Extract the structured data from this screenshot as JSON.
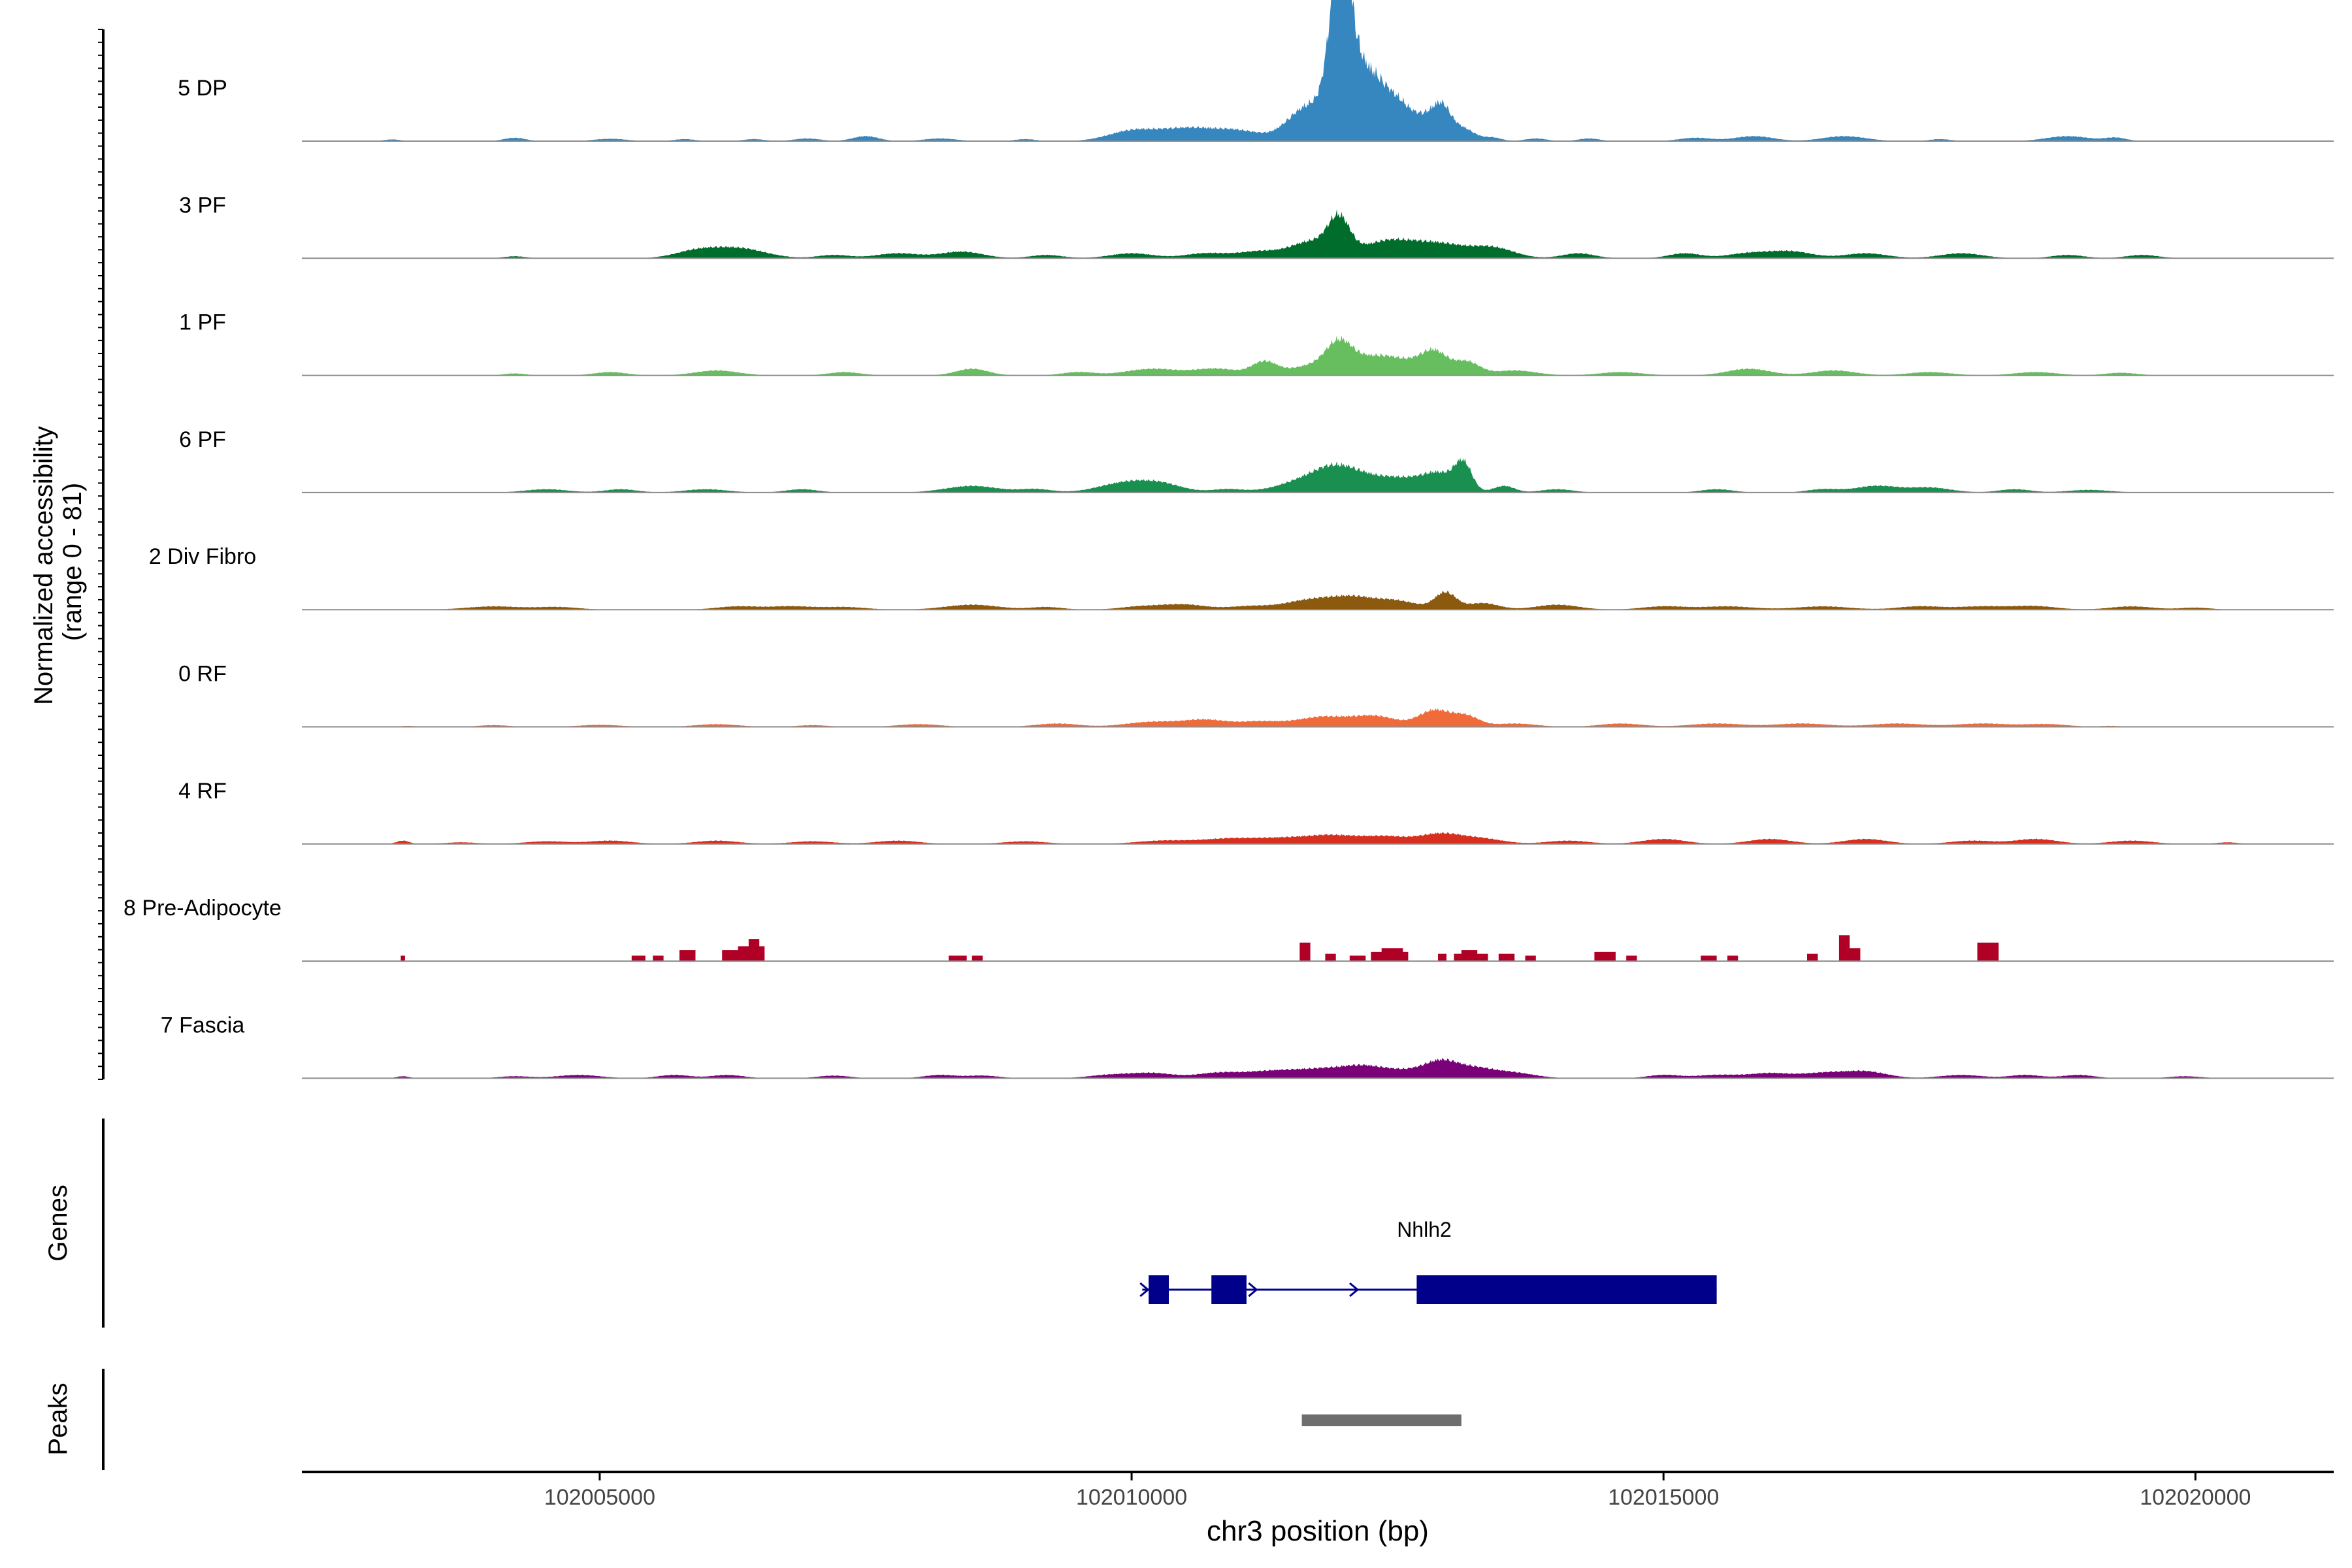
{
  "chart_data": {
    "type": "area",
    "title": "",
    "xlabel": "chr3 position (bp)",
    "ylabel_line1": "Normalized accessibility",
    "ylabel_line2": "(range 0 - 81)",
    "xlim": [
      102002200,
      102021300
    ],
    "ylim": [
      0,
      81
    ],
    "x_ticks": [
      102005000,
      102010000,
      102015000,
      102020000
    ],
    "x_tick_labels": [
      "102005000",
      "102010000",
      "102015000",
      "102020000"
    ],
    "series": [
      {
        "name": "5 DP",
        "color": "#3686C0",
        "peaks": [
          [
            102003050,
            0.5,
            80
          ],
          [
            102004200,
            1,
            100
          ],
          [
            102005100,
            0.7,
            150
          ],
          [
            102005800,
            0.6,
            100
          ],
          [
            102006450,
            0.6,
            100
          ],
          [
            102006950,
            0.8,
            120
          ],
          [
            102007500,
            1.5,
            120
          ],
          [
            102008200,
            0.8,
            150
          ],
          [
            102009000,
            0.6,
            100
          ],
          [
            102010000,
            3,
            220
          ],
          [
            102010500,
            3.5,
            250
          ],
          [
            102011000,
            3,
            250
          ],
          [
            102011550,
            4,
            150
          ],
          [
            102011800,
            10,
            200
          ],
          [
            102011930,
            30,
            80
          ],
          [
            102012020,
            20,
            80
          ],
          [
            102012100,
            12,
            150
          ],
          [
            102012300,
            14,
            150
          ],
          [
            102012550,
            8,
            120
          ],
          [
            102012780,
            6,
            100
          ],
          [
            102012920,
            8,
            80
          ],
          [
            102013100,
            4,
            120
          ],
          [
            102013400,
            1,
            80
          ],
          [
            102013800,
            0.8,
            100
          ],
          [
            102014300,
            0.8,
            100
          ],
          [
            102015300,
            1,
            150
          ],
          [
            102015850,
            1.5,
            180
          ],
          [
            102016700,
            1.5,
            200
          ],
          [
            102017600,
            0.6,
            100
          ],
          [
            102018800,
            1.5,
            200
          ],
          [
            102019250,
            1,
            100
          ]
        ]
      },
      {
        "name": "3 PF",
        "color": "#006D2C",
        "peaks": [
          [
            102004200,
            0.6,
            100
          ],
          [
            102005900,
            2,
            200
          ],
          [
            102006300,
            3,
            250
          ],
          [
            102007200,
            1,
            150
          ],
          [
            102007800,
            1.5,
            200
          ],
          [
            102008400,
            2,
            200
          ],
          [
            102009200,
            1,
            150
          ],
          [
            102010000,
            1.5,
            200
          ],
          [
            102010700,
            1.5,
            200
          ],
          [
            102011200,
            2,
            200
          ],
          [
            102011700,
            5,
            200
          ],
          [
            102011950,
            10,
            100
          ],
          [
            102012400,
            5,
            250
          ],
          [
            102012900,
            4,
            250
          ],
          [
            102013400,
            3,
            200
          ],
          [
            102014200,
            1.5,
            150
          ],
          [
            102015200,
            1.5,
            150
          ],
          [
            102015800,
            1.5,
            200
          ],
          [
            102016200,
            2,
            200
          ],
          [
            102016900,
            1.5,
            200
          ],
          [
            102017800,
            1.5,
            200
          ],
          [
            102018800,
            1,
            150
          ],
          [
            102019500,
            1,
            150
          ]
        ]
      },
      {
        "name": "1 PF",
        "color": "#66BE5F",
        "peaks": [
          [
            102004200,
            0.6,
            100
          ],
          [
            102005100,
            1,
            150
          ],
          [
            102006100,
            1.5,
            200
          ],
          [
            102007300,
            1,
            150
          ],
          [
            102008500,
            2,
            150
          ],
          [
            102009500,
            1,
            150
          ],
          [
            102010200,
            2,
            250
          ],
          [
            102010800,
            2,
            200
          ],
          [
            102011250,
            4,
            120
          ],
          [
            102011700,
            3,
            200
          ],
          [
            102011950,
            8,
            120
          ],
          [
            102012250,
            5,
            200
          ],
          [
            102012600,
            3.5,
            200
          ],
          [
            102012850,
            6,
            120
          ],
          [
            102013150,
            4,
            120
          ],
          [
            102013600,
            1.5,
            200
          ],
          [
            102014600,
            1,
            200
          ],
          [
            102015800,
            2,
            200
          ],
          [
            102016600,
            1.5,
            200
          ],
          [
            102017500,
            1,
            200
          ],
          [
            102018500,
            1,
            200
          ],
          [
            102019300,
            0.8,
            150
          ]
        ]
      },
      {
        "name": "6 PF",
        "color": "#1A9050",
        "peaks": [
          [
            102004500,
            1,
            200
          ],
          [
            102005200,
            1,
            150
          ],
          [
            102006000,
            1,
            200
          ],
          [
            102006900,
            1,
            150
          ],
          [
            102008500,
            2,
            250
          ],
          [
            102009100,
            1,
            150
          ],
          [
            102009950,
            3,
            250
          ],
          [
            102010300,
            2,
            200
          ],
          [
            102010900,
            1,
            150
          ],
          [
            102011600,
            3,
            250
          ],
          [
            102011900,
            5,
            200
          ],
          [
            102012200,
            4,
            250
          ],
          [
            102012600,
            3,
            200
          ],
          [
            102012900,
            5,
            150
          ],
          [
            102013120,
            8,
            80
          ],
          [
            102013500,
            2,
            100
          ],
          [
            102014000,
            1,
            150
          ],
          [
            102015500,
            1,
            150
          ],
          [
            102016500,
            1,
            150
          ],
          [
            102017000,
            2,
            200
          ],
          [
            102017500,
            1.5,
            200
          ],
          [
            102018300,
            1,
            150
          ],
          [
            102019000,
            0.8,
            200
          ]
        ]
      },
      {
        "name": "2 Div Fibro",
        "color": "#8C5A0F",
        "peaks": [
          [
            102004000,
            1,
            250
          ],
          [
            102004600,
            0.8,
            200
          ],
          [
            102006300,
            1,
            200
          ],
          [
            102006800,
            1,
            200
          ],
          [
            102007300,
            0.8,
            200
          ],
          [
            102008500,
            1.5,
            250
          ],
          [
            102009200,
            0.8,
            150
          ],
          [
            102010100,
            1,
            200
          ],
          [
            102010500,
            1.5,
            200
          ],
          [
            102011100,
            1,
            200
          ],
          [
            102011700,
            3,
            250
          ],
          [
            102012100,
            3,
            200
          ],
          [
            102012500,
            2.5,
            200
          ],
          [
            102012950,
            5,
            100
          ],
          [
            102013300,
            2,
            150
          ],
          [
            102014000,
            1.5,
            200
          ],
          [
            102015000,
            1,
            200
          ],
          [
            102015600,
            1,
            250
          ],
          [
            102016500,
            1,
            250
          ],
          [
            102017400,
            1,
            200
          ],
          [
            102018000,
            1,
            250
          ],
          [
            102018500,
            1,
            200
          ],
          [
            102019400,
            1,
            200
          ],
          [
            102020000,
            0.6,
            150
          ]
        ]
      },
      {
        "name": "0 RF",
        "color": "#EF6B3A",
        "peaks": [
          [
            102003200,
            0.3,
            80
          ],
          [
            102004000,
            0.5,
            150
          ],
          [
            102005000,
            0.6,
            200
          ],
          [
            102006100,
            0.8,
            200
          ],
          [
            102007000,
            0.5,
            150
          ],
          [
            102008000,
            0.8,
            200
          ],
          [
            102009300,
            1,
            200
          ],
          [
            102010200,
            1.5,
            250
          ],
          [
            102010700,
            2,
            200
          ],
          [
            102011200,
            1.5,
            200
          ],
          [
            102011800,
            3,
            250
          ],
          [
            102012300,
            3,
            200
          ],
          [
            102012850,
            5,
            150
          ],
          [
            102013150,
            3,
            120
          ],
          [
            102013600,
            1,
            200
          ],
          [
            102014600,
            1,
            200
          ],
          [
            102015500,
            1,
            250
          ],
          [
            102016300,
            1,
            250
          ],
          [
            102017200,
            1,
            250
          ],
          [
            102018000,
            1,
            250
          ],
          [
            102018600,
            0.8,
            200
          ],
          [
            102019200,
            0.3,
            100
          ]
        ]
      },
      {
        "name": "4 RF",
        "color": "#D7301F",
        "peaks": [
          [
            102003150,
            1,
            60
          ],
          [
            102003700,
            0.5,
            150
          ],
          [
            102004500,
            0.8,
            200
          ],
          [
            102005100,
            1,
            200
          ],
          [
            102006100,
            1,
            200
          ],
          [
            102007000,
            0.8,
            200
          ],
          [
            102007800,
            1,
            200
          ],
          [
            102009000,
            0.8,
            200
          ],
          [
            102010300,
            1,
            250
          ],
          [
            102010900,
            1.5,
            250
          ],
          [
            102011400,
            1.5,
            250
          ],
          [
            102011900,
            2.5,
            250
          ],
          [
            102012400,
            2,
            200
          ],
          [
            102012900,
            3,
            200
          ],
          [
            102013300,
            1.5,
            200
          ],
          [
            102014100,
            1,
            200
          ],
          [
            102015000,
            1.5,
            200
          ],
          [
            102016000,
            1.5,
            200
          ],
          [
            102016900,
            1.5,
            200
          ],
          [
            102017900,
            1,
            200
          ],
          [
            102018500,
            1.5,
            200
          ],
          [
            102019400,
            1,
            200
          ],
          [
            102020300,
            0.5,
            100
          ]
        ]
      },
      {
        "name": "8 Pre-Adipocyte",
        "color": "#B10026",
        "blocks": [
          [
            102003130,
            102003170,
            1.5
          ],
          [
            102005300,
            102005430,
            1.5
          ],
          [
            102005500,
            102005600,
            1.5
          ],
          [
            102005750,
            102005900,
            3
          ],
          [
            102006150,
            102006450,
            3
          ],
          [
            102006300,
            102006550,
            4
          ],
          [
            102006400,
            102006500,
            6
          ],
          [
            102008280,
            102008450,
            1.5
          ],
          [
            102008500,
            102008600,
            1.5
          ],
          [
            102011580,
            102011680,
            5
          ],
          [
            102011820,
            102011920,
            2
          ],
          [
            102012050,
            102012200,
            1.5
          ],
          [
            102012250,
            102012600,
            2.5
          ],
          [
            102012350,
            102012550,
            3.5
          ],
          [
            102012880,
            102012960,
            2
          ],
          [
            102013030,
            102013350,
            2
          ],
          [
            102013100,
            102013250,
            3
          ],
          [
            102013450,
            102013600,
            2
          ],
          [
            102013700,
            102013800,
            1.5
          ],
          [
            102014350,
            102014550,
            2.5
          ],
          [
            102014650,
            102014750,
            1.5
          ],
          [
            102015350,
            102015500,
            1.5
          ],
          [
            102015600,
            102015700,
            1.5
          ],
          [
            102016350,
            102016450,
            2
          ],
          [
            102016650,
            102016850,
            3.5
          ],
          [
            102016650,
            102016750,
            7
          ],
          [
            102017950,
            102018150,
            5
          ]
        ]
      },
      {
        "name": "7 Fascia",
        "color": "#7A0177",
        "peaks": [
          [
            102003150,
            0.6,
            60
          ],
          [
            102004200,
            0.6,
            150
          ],
          [
            102004800,
            1,
            200
          ],
          [
            102005700,
            1,
            150
          ],
          [
            102006200,
            1,
            150
          ],
          [
            102007200,
            0.8,
            150
          ],
          [
            102008200,
            1,
            150
          ],
          [
            102008600,
            0.8,
            150
          ],
          [
            102009800,
            1,
            200
          ],
          [
            102010200,
            1.5,
            200
          ],
          [
            102010800,
            1.5,
            200
          ],
          [
            102011300,
            2,
            250
          ],
          [
            102011800,
            2.5,
            250
          ],
          [
            102012200,
            3,
            200
          ],
          [
            102012600,
            2,
            200
          ],
          [
            102012900,
            4,
            150
          ],
          [
            102013200,
            3,
            200
          ],
          [
            102013600,
            1.5,
            200
          ],
          [
            102015000,
            1,
            150
          ],
          [
            102015500,
            1,
            200
          ],
          [
            102016000,
            1.5,
            200
          ],
          [
            102016500,
            1.5,
            200
          ],
          [
            102016900,
            2,
            200
          ],
          [
            102017800,
            1,
            200
          ],
          [
            102018400,
            1,
            150
          ],
          [
            102018900,
            1,
            150
          ],
          [
            102019900,
            0.6,
            150
          ]
        ]
      }
    ],
    "genes_track": {
      "label": "Genes",
      "gene_name": "Nhlh2",
      "color": "#00008B",
      "line_start": 102010100,
      "line_end": 102015500,
      "strand_arrows": [
        102010130,
        102011150,
        102012100
      ],
      "exons": [
        [
          102010160,
          102010350
        ],
        [
          102010750,
          102011080
        ],
        [
          102012680,
          102015500
        ]
      ]
    },
    "peaks_track": {
      "label": "Peaks",
      "color": "#6E6E6E",
      "regions": [
        [
          102011600,
          102013100
        ]
      ]
    }
  }
}
